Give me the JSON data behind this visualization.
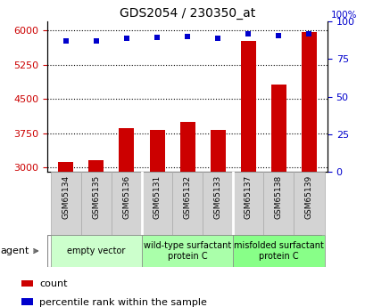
{
  "title": "GDS2054 / 230350_at",
  "categories": [
    "GSM65134",
    "GSM65135",
    "GSM65136",
    "GSM65131",
    "GSM65132",
    "GSM65133",
    "GSM65137",
    "GSM65138",
    "GSM65139"
  ],
  "bar_values": [
    3120,
    3160,
    3870,
    3830,
    4000,
    3830,
    5780,
    4820,
    5970
  ],
  "dot_values_pct": [
    87,
    87,
    89,
    89.5,
    90,
    89,
    92,
    90.5,
    92
  ],
  "ylim_left": [
    2900,
    6200
  ],
  "ylim_right": [
    0,
    100
  ],
  "yticks_left": [
    3000,
    3750,
    4500,
    5250,
    6000
  ],
  "yticks_right": [
    0,
    25,
    50,
    75,
    100
  ],
  "bar_color": "#cc0000",
  "dot_color": "#0000cc",
  "groups": [
    {
      "label": "empty vector",
      "indices": [
        0,
        1,
        2
      ],
      "color": "#ccffcc"
    },
    {
      "label": "wild-type surfactant\nprotein C",
      "indices": [
        3,
        4,
        5
      ],
      "color": "#aaffaa"
    },
    {
      "label": "misfolded surfactant\nprotein C",
      "indices": [
        6,
        7,
        8
      ],
      "color": "#88ff88"
    }
  ],
  "legend_count_label": "count",
  "legend_pct_label": "percentile rank within the sample",
  "tick_bg_color": "#d3d3d3",
  "right_axis_color": "#0000cc",
  "left_axis_color": "#cc0000",
  "bar_width": 0.5
}
